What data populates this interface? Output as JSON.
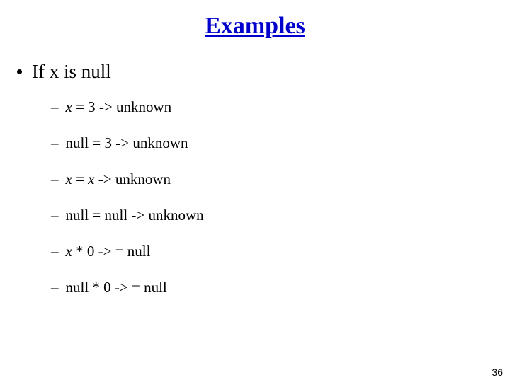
{
  "title": "Examples",
  "mainBullet": "If x is null",
  "subs": {
    "s1": {
      "prefix": "x",
      "rest": " = 3 -> unknown"
    },
    "s2": {
      "text": "null = 3 -> unknown"
    },
    "s3": {
      "prefix": "x",
      "mid": " = ",
      "var2": "x",
      "rest": " -> unknown"
    },
    "s4": {
      "text": "null = null -> unknown"
    },
    "s5": {
      "prefix": "x",
      "rest": " * 0 -> = null"
    },
    "s6": {
      "text": "null * 0 -> = null"
    }
  },
  "pageNumber": "36",
  "colors": {
    "titleColor": "#0000cc",
    "textColor": "#000000",
    "background": "#ffffff"
  },
  "fonts": {
    "family": "Comic Sans MS",
    "titleSize": 34,
    "mainSize": 27,
    "subSize": 21
  }
}
